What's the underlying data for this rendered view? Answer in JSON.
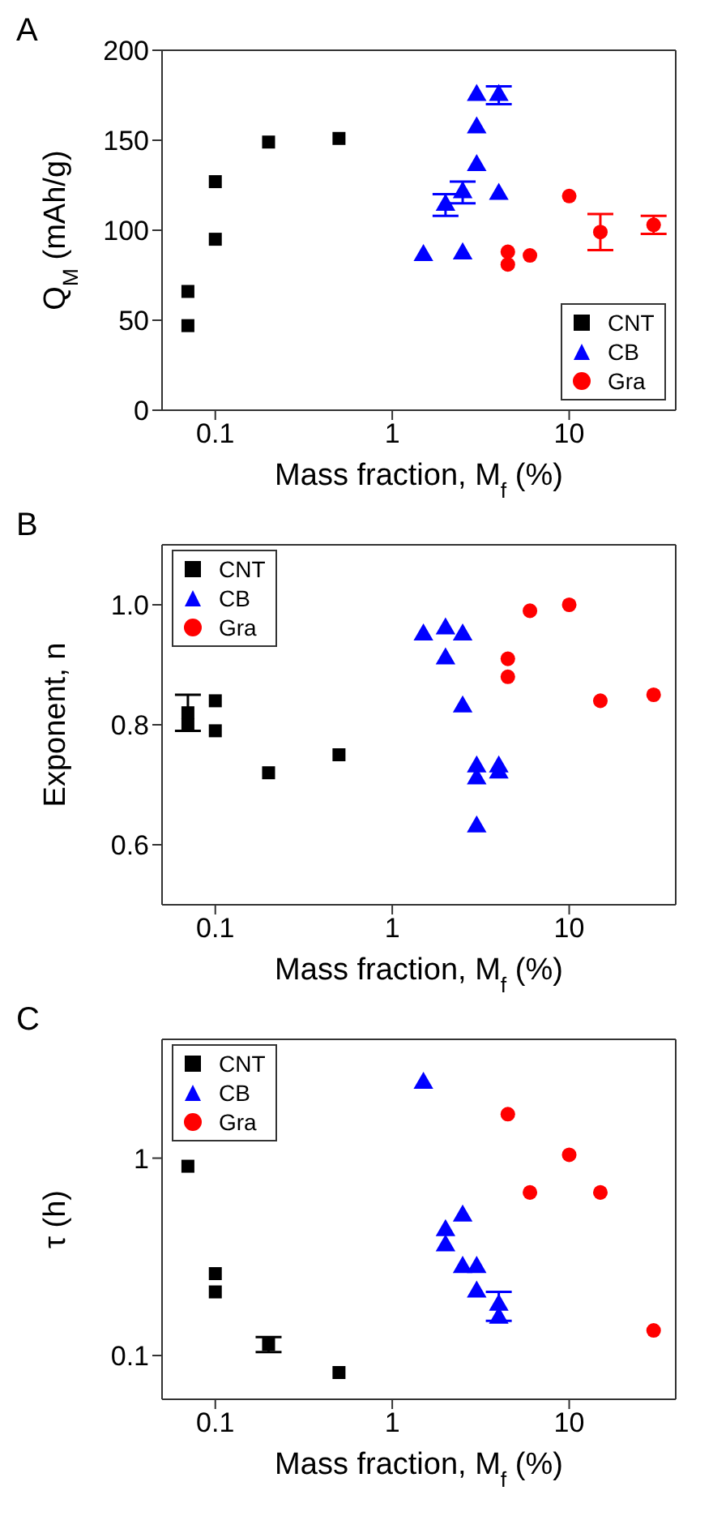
{
  "chart_data": [
    {
      "type": "scatter",
      "title": "A",
      "xlabel": "Mass fraction, M$_{f}$ (%)",
      "ylabel": "Q$_{M}$ (mAh/g)",
      "log": "x",
      "xlim": [
        0.05,
        40
      ],
      "xticks": [
        0.1,
        1,
        10
      ],
      "ylim": [
        0,
        200
      ],
      "yticks": [
        0,
        50,
        100,
        150,
        200
      ],
      "legend": "bottom right",
      "grid": false,
      "series": [
        {
          "name": "CNT",
          "color": "#000000",
          "marker": "square",
          "x": [
            0.07,
            0.07,
            0.1,
            0.1,
            0.2,
            0.5
          ],
          "values": [
            66,
            47,
            127,
            95,
            149,
            151
          ]
        },
        {
          "name": "CB",
          "color": "#0000ff",
          "marker": "triangle",
          "x": [
            1.5,
            2,
            2.5,
            2.5,
            3,
            3,
            3,
            4,
            4
          ],
          "values": [
            86,
            114,
            121,
            87,
            175,
            157,
            136,
            175,
            120
          ],
          "errors": [
            null,
            6,
            6,
            null,
            null,
            null,
            null,
            5,
            null
          ]
        },
        {
          "name": "Gra",
          "color": "#ff0000",
          "marker": "circle",
          "x": [
            4.5,
            4.5,
            6,
            10,
            15,
            30
          ],
          "values": [
            88,
            81,
            86,
            119,
            99,
            103
          ],
          "errors": [
            null,
            null,
            null,
            null,
            10,
            5
          ]
        }
      ]
    },
    {
      "type": "scatter",
      "title": "B",
      "xlabel": "Mass fraction, M$_{f}$ (%)",
      "ylabel": "Exponent, n",
      "log": "x",
      "xlim": [
        0.05,
        40
      ],
      "xticks": [
        0.1,
        1,
        10
      ],
      "ylim": [
        0.5,
        1.1
      ],
      "yticks": [
        0.6,
        0.8,
        {
          "value": 1,
          "label": "1.0"
        }
      ],
      "legend": "top left",
      "grid": false,
      "series": [
        {
          "name": "CNT",
          "color": "#000000",
          "marker": "square",
          "x": [
            0.07,
            0.07,
            0.1,
            0.1,
            0.2,
            0.5
          ],
          "values": [
            0.82,
            0.8,
            0.84,
            0.79,
            0.72,
            0.75
          ],
          "errors": [
            0.03,
            null,
            null,
            null,
            null,
            null
          ]
        },
        {
          "name": "CB",
          "color": "#0000ff",
          "marker": "triangle",
          "x": [
            1.5,
            2,
            2,
            2.5,
            2.5,
            3,
            3,
            3,
            4,
            4
          ],
          "values": [
            0.95,
            0.96,
            0.91,
            0.95,
            0.83,
            0.73,
            0.71,
            0.63,
            0.73,
            0.72
          ]
        },
        {
          "name": "Gra",
          "color": "#ff0000",
          "marker": "circle",
          "x": [
            4.5,
            4.5,
            6,
            10,
            15,
            30
          ],
          "values": [
            0.91,
            0.88,
            0.99,
            1.0,
            0.84,
            0.85
          ]
        }
      ]
    },
    {
      "type": "scatter",
      "title": "C",
      "xlabel": "Mass fraction, M$_{f}$ (%)",
      "ylabel": "τ (h)",
      "log": "xy",
      "xlim": [
        0.05,
        40
      ],
      "xticks": [
        0.1,
        1,
        10
      ],
      "ylim": [
        0.06,
        4
      ],
      "yticks": [
        0.1,
        1
      ],
      "legend": "top left",
      "grid": false,
      "series": [
        {
          "name": "CNT",
          "color": "#000000",
          "marker": "square",
          "x": [
            0.07,
            0.1,
            0.1,
            0.2,
            0.5
          ],
          "values": [
            0.91,
            0.26,
            0.21,
            0.114,
            0.082
          ],
          "errors": [
            null,
            null,
            null,
            0.01,
            null
          ]
        },
        {
          "name": "CB",
          "color": "#0000ff",
          "marker": "triangle",
          "x": [
            1.5,
            2,
            2,
            2.5,
            2.5,
            3,
            3,
            4,
            4
          ],
          "values": [
            2.4,
            0.43,
            0.36,
            0.51,
            0.28,
            0.28,
            0.21,
            0.18,
            0.155
          ],
          "errors": [
            null,
            null,
            null,
            null,
            null,
            null,
            null,
            0.03,
            null
          ]
        },
        {
          "name": "Gra",
          "color": "#ff0000",
          "marker": "circle",
          "x": [
            4.5,
            6,
            10,
            15,
            30
          ],
          "values": [
            1.67,
            0.67,
            1.04,
            0.67,
            0.134
          ]
        }
      ]
    }
  ]
}
